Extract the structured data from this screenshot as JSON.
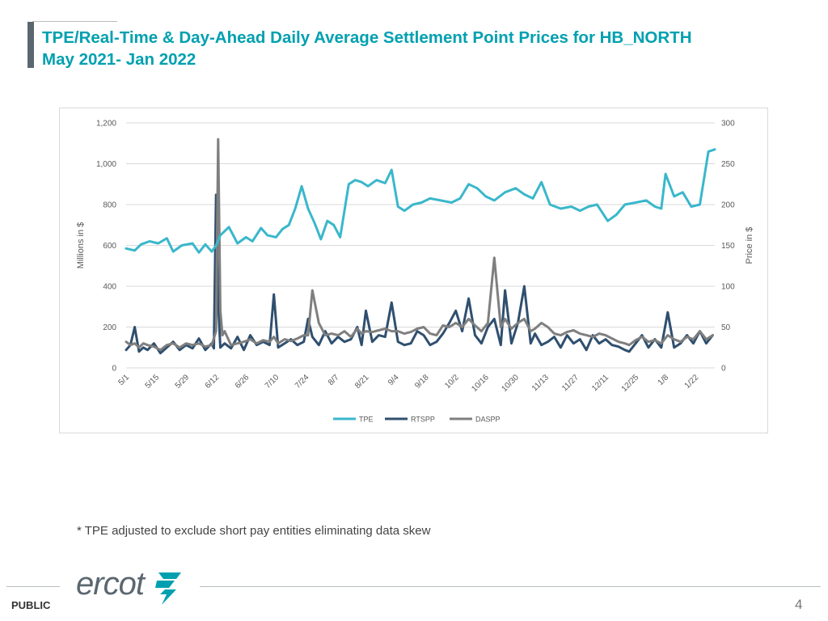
{
  "slide": {
    "title_line1": "TPE/Real-Time & Day-Ahead Daily Average Settlement Point Prices for HB_NORTH",
    "title_line2": "May 2021- Jan 2022",
    "footnote": "* TPE adjusted to exclude short pay entities eliminating data skew",
    "footer_label": "PUBLIC",
    "page_number": "4",
    "logo_text": "ercot",
    "accent_color": "#00a0b0"
  },
  "chart_data": {
    "type": "line",
    "title": "",
    "ylabel_left": "Millions in $",
    "ylabel_right": "Price in $",
    "ylim_left": [
      0,
      1200
    ],
    "ylim_right": [
      0,
      300
    ],
    "yticks_left": [
      "0",
      "200",
      "400",
      "600",
      "800",
      "1,000",
      "1,200"
    ],
    "yticks_right": [
      "0",
      "50",
      "100",
      "150",
      "200",
      "250",
      "300"
    ],
    "xlim": [
      "2021-05-01",
      "2022-01-31"
    ],
    "x_tick_labels": [
      "5/1",
      "5/15",
      "5/29",
      "6/12",
      "6/26",
      "7/10",
      "7/24",
      "8/7",
      "8/21",
      "9/4",
      "9/18",
      "10/2",
      "10/16",
      "10/30",
      "11/13",
      "11/27",
      "12/11",
      "12/25",
      "1/8",
      "1/22"
    ],
    "x_tick_dates": [
      "2021-05-01",
      "2021-05-15",
      "2021-05-29",
      "2021-06-12",
      "2021-06-26",
      "2021-07-10",
      "2021-07-24",
      "2021-08-07",
      "2021-08-21",
      "2021-09-04",
      "2021-09-18",
      "2021-10-02",
      "2021-10-16",
      "2021-10-30",
      "2021-11-13",
      "2021-11-27",
      "2021-12-11",
      "2021-12-25",
      "2022-01-08",
      "2022-01-22"
    ],
    "grid": true,
    "legend_position": "bottom",
    "series": [
      {
        "name": "TPE",
        "axis": "left",
        "color": "#3ab7cb",
        "x": [
          "2021-05-01",
          "2021-05-05",
          "2021-05-08",
          "2021-05-12",
          "2021-05-16",
          "2021-05-20",
          "2021-05-23",
          "2021-05-27",
          "2021-06-01",
          "2021-06-04",
          "2021-06-07",
          "2021-06-10",
          "2021-06-12",
          "2021-06-14",
          "2021-06-18",
          "2021-06-22",
          "2021-06-26",
          "2021-06-29",
          "2021-07-03",
          "2021-07-06",
          "2021-07-10",
          "2021-07-13",
          "2021-07-16",
          "2021-07-19",
          "2021-07-22",
          "2021-07-25",
          "2021-07-28",
          "2021-07-31",
          "2021-08-03",
          "2021-08-06",
          "2021-08-09",
          "2021-08-13",
          "2021-08-16",
          "2021-08-19",
          "2021-08-22",
          "2021-08-26",
          "2021-08-30",
          "2021-09-02",
          "2021-09-05",
          "2021-09-08",
          "2021-09-12",
          "2021-09-16",
          "2021-09-20",
          "2021-09-25",
          "2021-09-30",
          "2021-10-04",
          "2021-10-08",
          "2021-10-12",
          "2021-10-16",
          "2021-10-20",
          "2021-10-25",
          "2021-10-30",
          "2021-11-03",
          "2021-11-07",
          "2021-11-11",
          "2021-11-15",
          "2021-11-20",
          "2021-11-25",
          "2021-11-29",
          "2021-12-03",
          "2021-12-07",
          "2021-12-12",
          "2021-12-16",
          "2021-12-20",
          "2021-12-25",
          "2021-12-30",
          "2022-01-03",
          "2022-01-06",
          "2022-01-08",
          "2022-01-12",
          "2022-01-16",
          "2022-01-20",
          "2022-01-24",
          "2022-01-28",
          "2022-01-31"
        ],
        "values": [
          585,
          575,
          605,
          620,
          610,
          635,
          570,
          600,
          610,
          565,
          605,
          570,
          600,
          650,
          690,
          610,
          640,
          620,
          685,
          650,
          640,
          680,
          700,
          780,
          890,
          780,
          710,
          630,
          720,
          700,
          640,
          900,
          920,
          910,
          890,
          920,
          905,
          970,
          790,
          770,
          800,
          810,
          830,
          820,
          810,
          830,
          900,
          880,
          840,
          820,
          860,
          880,
          850,
          830,
          910,
          800,
          780,
          790,
          770,
          790,
          800,
          720,
          750,
          800,
          810,
          820,
          790,
          780,
          950,
          840,
          860,
          790,
          800,
          1060,
          1070
        ]
      },
      {
        "name": "RTSPP",
        "axis": "right",
        "color": "#2f4f6f",
        "x": [
          "2021-05-01",
          "2021-05-03",
          "2021-05-05",
          "2021-05-07",
          "2021-05-09",
          "2021-05-11",
          "2021-05-14",
          "2021-05-17",
          "2021-05-20",
          "2021-05-23",
          "2021-05-26",
          "2021-05-29",
          "2021-06-01",
          "2021-06-04",
          "2021-06-07",
          "2021-06-10",
          "2021-06-11",
          "2021-06-12",
          "2021-06-13",
          "2021-06-14",
          "2021-06-16",
          "2021-06-19",
          "2021-06-22",
          "2021-06-25",
          "2021-06-28",
          "2021-07-01",
          "2021-07-04",
          "2021-07-07",
          "2021-07-09",
          "2021-07-11",
          "2021-07-14",
          "2021-07-17",
          "2021-07-20",
          "2021-07-23",
          "2021-07-25",
          "2021-07-27",
          "2021-07-30",
          "2021-08-02",
          "2021-08-05",
          "2021-08-08",
          "2021-08-11",
          "2021-08-14",
          "2021-08-17",
          "2021-08-19",
          "2021-08-21",
          "2021-08-24",
          "2021-08-27",
          "2021-08-30",
          "2021-09-02",
          "2021-09-05",
          "2021-09-08",
          "2021-09-11",
          "2021-09-14",
          "2021-09-17",
          "2021-09-20",
          "2021-09-23",
          "2021-09-26",
          "2021-09-29",
          "2021-10-02",
          "2021-10-05",
          "2021-10-08",
          "2021-10-11",
          "2021-10-14",
          "2021-10-17",
          "2021-10-20",
          "2021-10-23",
          "2021-10-25",
          "2021-10-28",
          "2021-10-31",
          "2021-11-03",
          "2021-11-06",
          "2021-11-08",
          "2021-11-11",
          "2021-11-14",
          "2021-11-17",
          "2021-11-20",
          "2021-11-23",
          "2021-11-26",
          "2021-11-29",
          "2021-12-02",
          "2021-12-05",
          "2021-12-08",
          "2021-12-11",
          "2021-12-14",
          "2021-12-17",
          "2021-12-20",
          "2021-12-22",
          "2021-12-25",
          "2021-12-28",
          "2021-12-31",
          "2022-01-03",
          "2022-01-06",
          "2022-01-09",
          "2022-01-12",
          "2022-01-15",
          "2022-01-18",
          "2022-01-21",
          "2022-01-24",
          "2022-01-27",
          "2022-01-30"
        ],
        "values": [
          22,
          28,
          50,
          20,
          25,
          22,
          30,
          18,
          25,
          32,
          22,
          28,
          24,
          36,
          22,
          30,
          24,
          212,
          80,
          25,
          30,
          24,
          38,
          22,
          40,
          28,
          32,
          28,
          90,
          25,
          30,
          35,
          28,
          32,
          60,
          38,
          28,
          45,
          30,
          38,
          32,
          35,
          50,
          28,
          70,
          32,
          40,
          38,
          80,
          32,
          28,
          30,
          45,
          40,
          28,
          32,
          42,
          55,
          70,
          45,
          85,
          40,
          30,
          50,
          60,
          28,
          95,
          30,
          55,
          100,
          30,
          42,
          28,
          32,
          38,
          25,
          40,
          30,
          35,
          22,
          40,
          30,
          35,
          28,
          26,
          22,
          20,
          30,
          40,
          25,
          35,
          25,
          68,
          25,
          30,
          40,
          30,
          45,
          30,
          40
        ]
      },
      {
        "name": "DASPP",
        "axis": "right",
        "color": "#7f7f7f",
        "x": [
          "2021-05-01",
          "2021-05-03",
          "2021-05-05",
          "2021-05-07",
          "2021-05-09",
          "2021-05-11",
          "2021-05-14",
          "2021-05-17",
          "2021-05-20",
          "2021-05-23",
          "2021-05-26",
          "2021-05-29",
          "2021-06-01",
          "2021-06-04",
          "2021-06-07",
          "2021-06-10",
          "2021-06-12",
          "2021-06-13",
          "2021-06-14",
          "2021-06-15",
          "2021-06-16",
          "2021-06-19",
          "2021-06-22",
          "2021-06-25",
          "2021-06-28",
          "2021-07-01",
          "2021-07-04",
          "2021-07-07",
          "2021-07-09",
          "2021-07-11",
          "2021-07-14",
          "2021-07-17",
          "2021-07-20",
          "2021-07-23",
          "2021-07-25",
          "2021-07-27",
          "2021-07-30",
          "2021-08-02",
          "2021-08-05",
          "2021-08-08",
          "2021-08-11",
          "2021-08-14",
          "2021-08-17",
          "2021-08-19",
          "2021-08-21",
          "2021-08-24",
          "2021-08-27",
          "2021-08-30",
          "2021-09-02",
          "2021-09-05",
          "2021-09-08",
          "2021-09-11",
          "2021-09-14",
          "2021-09-17",
          "2021-09-20",
          "2021-09-23",
          "2021-09-26",
          "2021-09-29",
          "2021-10-02",
          "2021-10-05",
          "2021-10-08",
          "2021-10-11",
          "2021-10-14",
          "2021-10-17",
          "2021-10-20",
          "2021-10-23",
          "2021-10-25",
          "2021-10-28",
          "2021-10-31",
          "2021-11-03",
          "2021-11-06",
          "2021-11-08",
          "2021-11-11",
          "2021-11-14",
          "2021-11-17",
          "2021-11-20",
          "2021-11-23",
          "2021-11-26",
          "2021-11-29",
          "2021-12-02",
          "2021-12-05",
          "2021-12-08",
          "2021-12-11",
          "2021-12-14",
          "2021-12-17",
          "2021-12-20",
          "2021-12-22",
          "2021-12-25",
          "2021-12-28",
          "2021-12-31",
          "2022-01-03",
          "2022-01-06",
          "2022-01-09",
          "2022-01-12",
          "2022-01-15",
          "2022-01-18",
          "2022-01-21",
          "2022-01-24",
          "2022-01-27",
          "2022-01-30"
        ],
        "values": [
          32,
          28,
          30,
          25,
          30,
          28,
          26,
          22,
          28,
          30,
          25,
          30,
          28,
          30,
          26,
          28,
          45,
          280,
          70,
          40,
          45,
          28,
          30,
          32,
          35,
          30,
          34,
          32,
          38,
          30,
          35,
          33,
          36,
          40,
          40,
          95,
          55,
          40,
          42,
          40,
          45,
          38,
          48,
          42,
          45,
          44,
          46,
          48,
          45,
          45,
          42,
          44,
          48,
          50,
          42,
          40,
          52,
          50,
          55,
          50,
          60,
          52,
          45,
          55,
          135,
          50,
          60,
          48,
          55,
          60,
          45,
          48,
          55,
          50,
          42,
          40,
          44,
          46,
          42,
          40,
          38,
          42,
          40,
          36,
          32,
          30,
          28,
          34,
          38,
          32,
          34,
          30,
          40,
          35,
          32,
          38,
          35,
          45,
          35,
          40
        ]
      }
    ]
  }
}
